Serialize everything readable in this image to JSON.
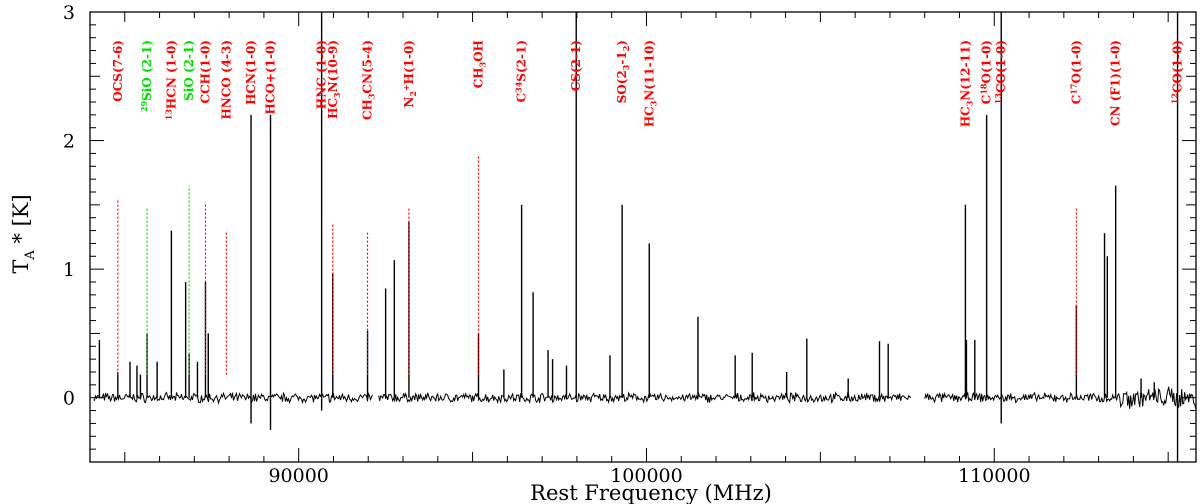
{
  "chart_data": {
    "type": "line",
    "title": "",
    "xlabel": "Rest Frequency (MHz)",
    "ylabel": "T",
    "ylabel_sub": "A",
    "ylabel_rest": " * [K]",
    "xlim": [
      84000,
      115800
    ],
    "ylim": [
      -0.5,
      3
    ],
    "xticks": [
      {
        "value": 90000,
        "label": "90000"
      },
      {
        "value": 100000,
        "label": "100000"
      },
      {
        "value": 110000,
        "label": "110000"
      }
    ],
    "yticks": [
      {
        "value": 0,
        "label": "0"
      },
      {
        "value": 1,
        "label": "1"
      },
      {
        "value": 2,
        "label": "2"
      },
      {
        "value": 3,
        "label": "3"
      }
    ],
    "colors": {
      "red": "#ff0000",
      "green": "#00dd00",
      "trace": "#000000"
    },
    "spectrum": {
      "segments": [
        [
          84100,
          92150
        ],
        [
          92300,
          107600
        ],
        [
          108000,
          115800
        ]
      ],
      "peaks": [
        [
          84270,
          0.45
        ],
        [
          84800,
          0.2
        ],
        [
          85150,
          0.28
        ],
        [
          85350,
          0.25
        ],
        [
          85450,
          0.18
        ],
        [
          85640,
          0.5
        ],
        [
          85930,
          0.28
        ],
        [
          86340,
          1.3
        ],
        [
          86750,
          0.9
        ],
        [
          86850,
          0.35
        ],
        [
          87090,
          0.28
        ],
        [
          87320,
          0.9
        ],
        [
          87400,
          0.5
        ],
        [
          88630,
          2.2
        ],
        [
          88630,
          -0.2
        ],
        [
          89190,
          2.2
        ],
        [
          89190,
          -0.25
        ],
        [
          90660,
          3.0
        ],
        [
          90660,
          -0.1
        ],
        [
          90980,
          0.97
        ],
        [
          91980,
          0.52
        ],
        [
          92500,
          0.85
        ],
        [
          92750,
          1.07
        ],
        [
          93170,
          1.37
        ],
        [
          95170,
          0.5
        ],
        [
          95900,
          0.22
        ],
        [
          96410,
          1.5
        ],
        [
          96740,
          0.82
        ],
        [
          97170,
          0.37
        ],
        [
          97300,
          0.3
        ],
        [
          97700,
          0.25
        ],
        [
          97980,
          3.0
        ],
        [
          98950,
          0.33
        ],
        [
          99300,
          1.5
        ],
        [
          100080,
          1.2
        ],
        [
          101480,
          0.63
        ],
        [
          102550,
          0.33
        ],
        [
          103040,
          0.35
        ],
        [
          104030,
          0.2
        ],
        [
          104610,
          0.46
        ],
        [
          105800,
          0.15
        ],
        [
          106700,
          0.44
        ],
        [
          106950,
          0.42
        ],
        [
          109170,
          1.5
        ],
        [
          109200,
          0.45
        ],
        [
          109440,
          0.45
        ],
        [
          109780,
          2.2
        ],
        [
          110200,
          3.0
        ],
        [
          110200,
          -0.2
        ],
        [
          112360,
          0.72
        ],
        [
          113170,
          1.28
        ],
        [
          113250,
          1.1
        ],
        [
          113490,
          1.65
        ],
        [
          114220,
          0.15
        ],
        [
          114600,
          0.12
        ],
        [
          115270,
          3.0
        ],
        [
          115270,
          -0.5
        ]
      ]
    },
    "series": [
      {
        "name": "OCS(7-6)",
        "x": 84800,
        "peak": 1.55,
        "color": "red"
      },
      {
        "name": "29SiO (2-1)",
        "x": 85640,
        "peak": 1.48,
        "color": "green"
      },
      {
        "name": "H13CN (1-0)",
        "x": 86340,
        "peak": null,
        "color": "red"
      },
      {
        "name": "SiO (2-1)",
        "x": 86850,
        "peak": 1.65,
        "color": "green"
      },
      {
        "name": "CCH(1-0)",
        "x": 87320,
        "peak": 1.52,
        "color": "red"
      },
      {
        "name": "HNCO (4-3)",
        "x": 87920,
        "peak": 1.3,
        "color": "red"
      },
      {
        "name": "HCN(1-0)",
        "x": 88630,
        "peak": null,
        "color": "red"
      },
      {
        "name": "HCO+(1-0)",
        "x": 89190,
        "peak": null,
        "color": "red"
      },
      {
        "name": "HNC (1-0)",
        "x": 90660,
        "peak": null,
        "color": "red"
      },
      {
        "name": "HC3N(10-9)",
        "x": 90980,
        "peak": 1.35,
        "color": "red"
      },
      {
        "name": "CH3CN(5-4)",
        "x": 91980,
        "peak": 1.3,
        "color": "red"
      },
      {
        "name": "N2H+(1-0)",
        "x": 93170,
        "peak": 1.48,
        "color": "red"
      },
      {
        "name": "CH3OH",
        "x": 95170,
        "peak": 1.88,
        "color": "red"
      },
      {
        "name": "C34S(2-1)",
        "x": 96410,
        "peak": null,
        "color": "red"
      },
      {
        "name": "CS(2-1)",
        "x": 97980,
        "peak": null,
        "color": "red"
      },
      {
        "name": "SO(23-12)",
        "x": 99300,
        "peak": null,
        "color": "red"
      },
      {
        "name": "HC3N(11-10)",
        "x": 100080,
        "peak": null,
        "color": "red"
      },
      {
        "name": "HC3N(12-11)",
        "x": 109170,
        "peak": null,
        "color": "red"
      },
      {
        "name": "C18O(1-0)",
        "x": 109780,
        "peak": null,
        "color": "red"
      },
      {
        "name": "13CO(1-0)",
        "x": 110200,
        "peak": null,
        "color": "red"
      },
      {
        "name": "C17O(1-0)",
        "x": 112360,
        "peak": 1.48,
        "color": "red"
      },
      {
        "name": "CN (F1)(1-0)",
        "x": 113490,
        "peak": null,
        "color": "red"
      },
      {
        "name": "12CO(1-0)",
        "x": 115270,
        "peak": null,
        "color": "red"
      }
    ]
  },
  "labels": [
    {
      "id": "ocs",
      "main": "OCS(7-6)"
    },
    {
      "id": "sio29",
      "pre_sup": "29",
      "main": "SiO (2-1)"
    },
    {
      "id": "h13cn",
      "pre_text": "H",
      "pre_sup": "13",
      "main": "CN (1-0)"
    },
    {
      "id": "sio",
      "main": "SiO (2-1)"
    },
    {
      "id": "cch",
      "main": "CCH(1-0)"
    },
    {
      "id": "hnco",
      "main": "HNCO (4-3)"
    },
    {
      "id": "hcn",
      "main": "HCN(1-0)"
    },
    {
      "id": "hcop",
      "main": "HCO+(1-0)"
    },
    {
      "id": "hnc",
      "main": "HNC (1-0)"
    },
    {
      "id": "hc3n109",
      "pre_text": "HC",
      "sub": "3",
      "main": "N(10-9)"
    },
    {
      "id": "ch3cn",
      "pre_text": "CH",
      "sub": "3",
      "main": "CN(5-4)"
    },
    {
      "id": "n2hp",
      "pre_text": "N",
      "sub": "2",
      "mid_text": "H",
      "sup": "+",
      "main": "(1-0)"
    },
    {
      "id": "ch3oh",
      "pre_text": "CH",
      "sub": "3",
      "main": "OH"
    },
    {
      "id": "c34s",
      "pre_text": "C",
      "sup": "34",
      "main": "S(2-1)"
    },
    {
      "id": "cs",
      "main": "CS(2-1)"
    },
    {
      "id": "so",
      "pre_text": "SO(2",
      "sub": "3",
      "mid_text": "-1",
      "sub2": "2",
      "main": ")"
    },
    {
      "id": "hc3n1110",
      "pre_text": "HC",
      "sub": "3",
      "main": "N(11-10)"
    },
    {
      "id": "hc3n1211",
      "pre_text": "HC",
      "sub": "3",
      "main": "N(12-11)"
    },
    {
      "id": "c18o",
      "pre_text": "C",
      "sup": "18",
      "main": "O(1-0)"
    },
    {
      "id": "co13",
      "pre_sup": "13",
      "main": "CO(1-0)"
    },
    {
      "id": "c17o",
      "pre_text": "C",
      "sup": "17",
      "main": "O(1-0)"
    },
    {
      "id": "cn",
      "main": "CN (F1)(1-0)"
    },
    {
      "id": "co12",
      "pre_sup": "12",
      "main": "CO(1-0)"
    }
  ]
}
